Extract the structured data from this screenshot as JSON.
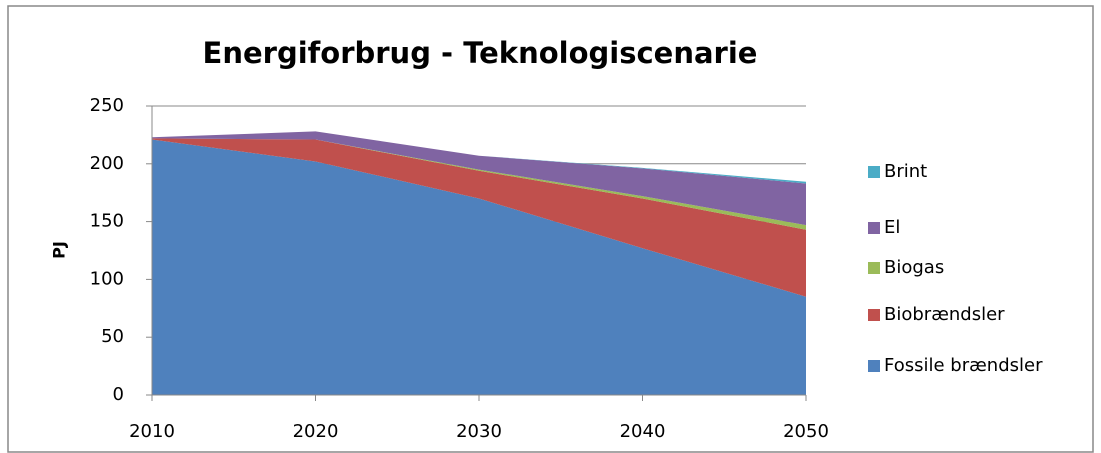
{
  "chart_data": {
    "type": "stacked_area",
    "title": "Energiforbrug - Teknologiscenarie",
    "y_label": "PJ",
    "x": [
      2010,
      2020,
      2030,
      2040,
      2050
    ],
    "xlim": [
      2010,
      2050
    ],
    "xticks": [
      2010,
      2020,
      2030,
      2040,
      2050
    ],
    "ylim": [
      0,
      250
    ],
    "yticks": [
      0,
      50,
      100,
      150,
      200,
      250
    ],
    "grid": true,
    "legend": "right",
    "series": [
      {
        "name": "Fossile brændsler",
        "color": "#4f81bd",
        "values": [
          221,
          202,
          170,
          127,
          85
        ]
      },
      {
        "name": "Biobrændsler",
        "color": "#c0504d",
        "values": [
          1,
          19,
          24,
          43,
          58
        ]
      },
      {
        "name": "Biogas",
        "color": "#9bbb59",
        "values": [
          0,
          0,
          1,
          2,
          4
        ]
      },
      {
        "name": "El",
        "color": "#8064a2",
        "values": [
          1,
          7,
          12,
          24,
          36
        ]
      },
      {
        "name": "Brint",
        "color": "#4bacc6",
        "values": [
          0,
          0,
          0,
          0.5,
          1.5
        ]
      }
    ]
  }
}
